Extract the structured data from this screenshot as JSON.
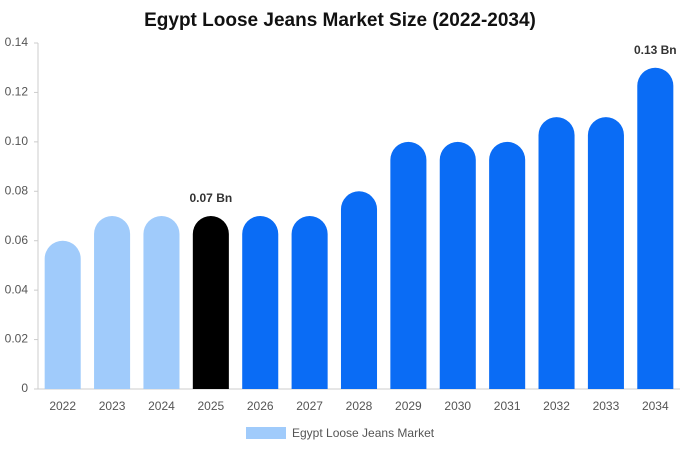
{
  "chart_data": {
    "type": "bar",
    "title": "Egypt Loose Jeans Market Size (2022-2034)",
    "categories": [
      "2022",
      "2023",
      "2024",
      "2025",
      "2026",
      "2027",
      "2028",
      "2029",
      "2030",
      "2031",
      "2032",
      "2033",
      "2034"
    ],
    "series": [
      {
        "name": "Egypt Loose Jeans Market",
        "color": "#a0cbfb",
        "values": [
          0.06,
          0.07,
          0.07,
          0.07,
          0.07,
          0.07,
          0.08,
          0.1,
          0.1,
          0.1,
          0.11,
          0.11,
          0.13
        ],
        "colors": [
          "#a0cbfb",
          "#a0cbfb",
          "#a0cbfb",
          "#000000",
          "#0a6cf5",
          "#0a6cf5",
          "#0a6cf5",
          "#0a6cf5",
          "#0a6cf5",
          "#0a6cf5",
          "#0a6cf5",
          "#0a6cf5",
          "#0a6cf5"
        ],
        "value_labels": [
          null,
          null,
          null,
          "0.07 Bn",
          null,
          null,
          null,
          null,
          null,
          null,
          null,
          null,
          "0.13 Bn"
        ]
      }
    ],
    "ylim": [
      0,
      0.14
    ],
    "yticks": [
      0,
      0.02,
      0.04,
      0.06,
      0.08,
      {
        "value": 0.1,
        "label": "0.10"
      },
      0.12,
      0.14
    ],
    "grid": false
  }
}
